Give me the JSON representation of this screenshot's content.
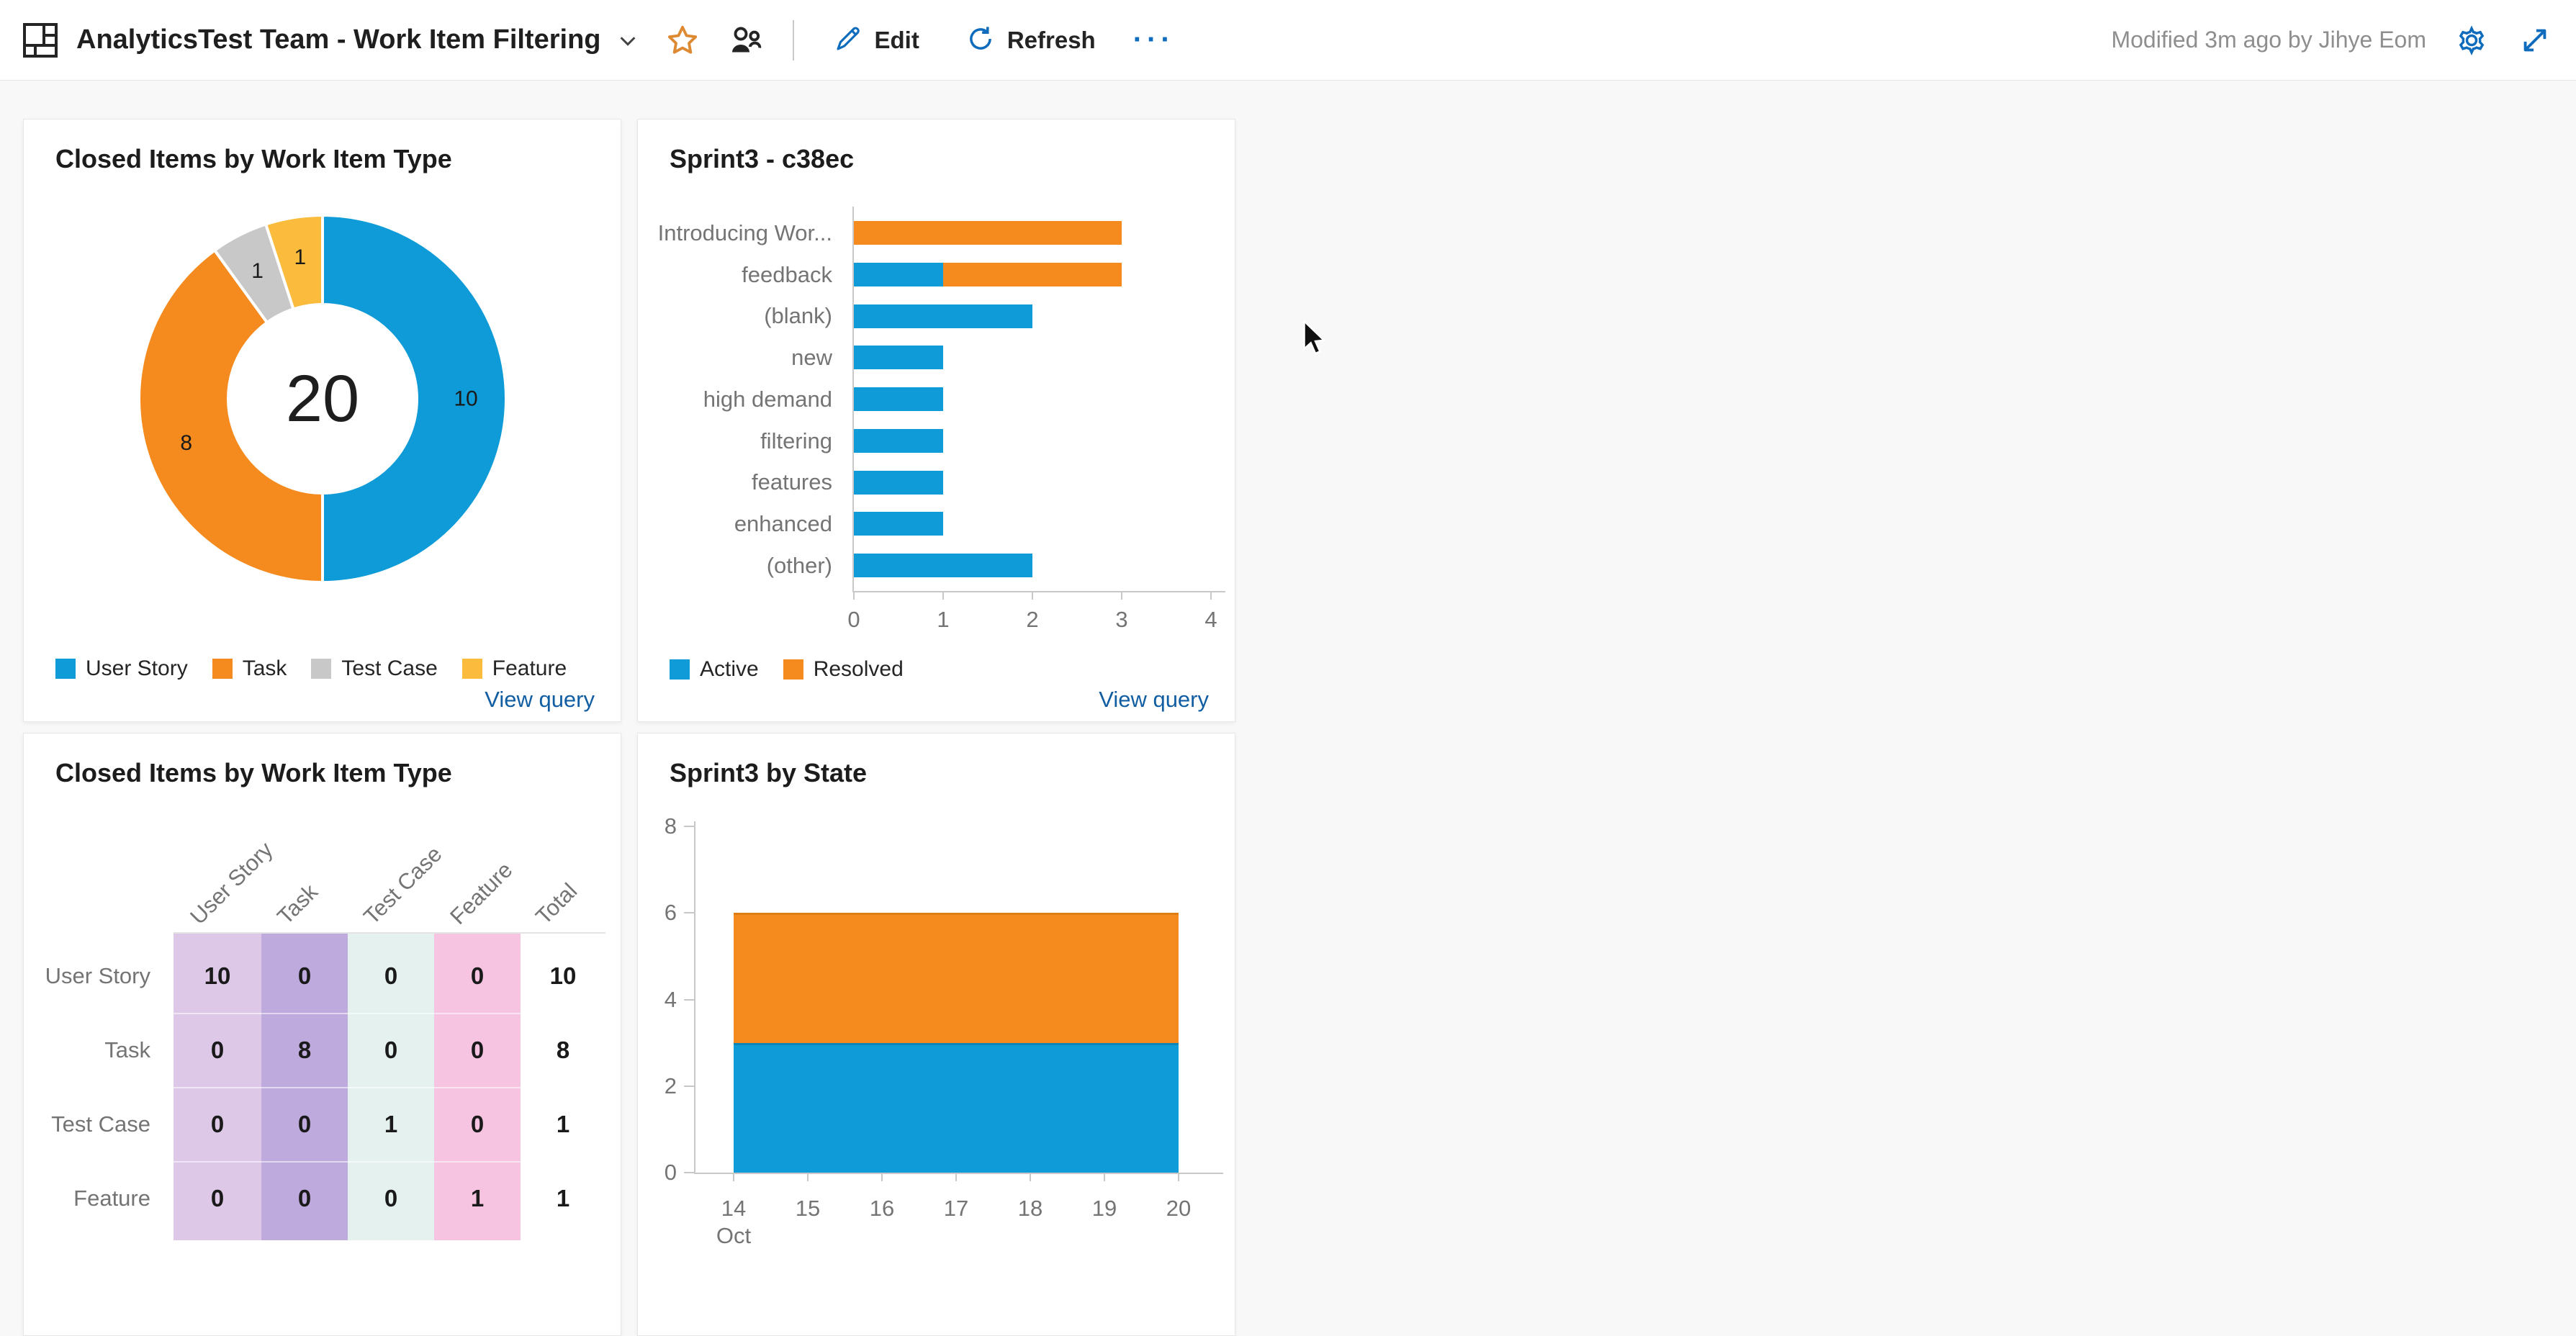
{
  "header": {
    "title": "AnalyticsTest Team - Work Item Filtering",
    "edit_label": "Edit",
    "refresh_label": "Refresh",
    "more_label": "···",
    "modified_text": "Modified 3m ago by Jihye Eom",
    "icons": [
      "dashboard-icon",
      "chevron-down-icon",
      "star-icon",
      "team-icon",
      "pencil-icon",
      "refresh-icon",
      "more-icon",
      "gear-icon",
      "expand-icon"
    ]
  },
  "links": {
    "view_query": "View query"
  },
  "colors": {
    "accent_icon_blue": "#0f6cbd",
    "link_blue": "#115ea3",
    "chart_blue": "#0f9bd7",
    "chart_orange": "#f58b1e",
    "chart_gray": "#c8c8c8",
    "chart_yellow": "#fbbc3d",
    "star_orange": "#de8a33",
    "page_background": "#f8f8f8"
  },
  "chart_data": [
    {
      "id": "closed-items-donut",
      "type": "pie",
      "title": "Closed Items by Work Item Type",
      "categories": [
        "User Story",
        "Task",
        "Test Case",
        "Feature"
      ],
      "values": [
        10,
        8,
        1,
        1
      ],
      "colors": [
        "#0f9bd7",
        "#f58b1e",
        "#c8c8c8",
        "#fbbc3d"
      ],
      "center_total": "20",
      "legend_position": "bottom",
      "link": "View query"
    },
    {
      "id": "sprint3-c38ec",
      "type": "bar",
      "orientation": "horizontal",
      "title": "Sprint3 - c38ec",
      "categories": [
        "Introducing Wor...",
        "feedback",
        "(blank)",
        "new",
        "high demand",
        "filtering",
        "features",
        "enhanced",
        "(other)"
      ],
      "series": [
        {
          "name": "Active",
          "color": "#0f9bd7",
          "values": [
            0,
            1,
            2,
            1,
            1,
            1,
            1,
            1,
            2
          ]
        },
        {
          "name": "Resolved",
          "color": "#f58b1e",
          "values": [
            3,
            2,
            0,
            0,
            0,
            0,
            0,
            0,
            0
          ]
        }
      ],
      "xlim": [
        0,
        4
      ],
      "xticks": [
        0,
        1,
        2,
        3,
        4
      ],
      "grid": false,
      "legend_position": "bottom",
      "link": "View query"
    },
    {
      "id": "closed-items-table",
      "type": "table",
      "title": "Closed Items by Work Item Type",
      "columns": [
        "User Story",
        "Task",
        "Test Case",
        "Feature",
        "Total"
      ],
      "rows": [
        {
          "label": "User Story",
          "values": [
            10,
            0,
            0,
            0,
            10
          ]
        },
        {
          "label": "Task",
          "values": [
            0,
            8,
            0,
            0,
            8
          ]
        },
        {
          "label": "Test Case",
          "values": [
            0,
            0,
            1,
            0,
            1
          ]
        },
        {
          "label": "Feature",
          "values": [
            0,
            0,
            0,
            1,
            1
          ]
        }
      ],
      "column_colors": [
        "#ddc8e8",
        "#bfaade",
        "#e4f1ee",
        "#f6c3e1",
        "#ffffff"
      ]
    },
    {
      "id": "sprint3-by-state",
      "type": "area",
      "title": "Sprint3 by State",
      "x": [
        14,
        15,
        16,
        17,
        18,
        19,
        20
      ],
      "x_month_label": "Oct",
      "series": [
        {
          "name": "Active",
          "color": "#0f9bd7",
          "line_color": "#0c85b9",
          "values": [
            3,
            3,
            3,
            3,
            3,
            3,
            3
          ]
        },
        {
          "name": "Resolved",
          "color": "#f58b1e",
          "line_color": "#dd7d16",
          "values": [
            3,
            3,
            3,
            3,
            3,
            3,
            3
          ]
        }
      ],
      "ylim": [
        0,
        8
      ],
      "yticks": [
        0,
        2,
        4,
        6,
        8
      ]
    }
  ]
}
